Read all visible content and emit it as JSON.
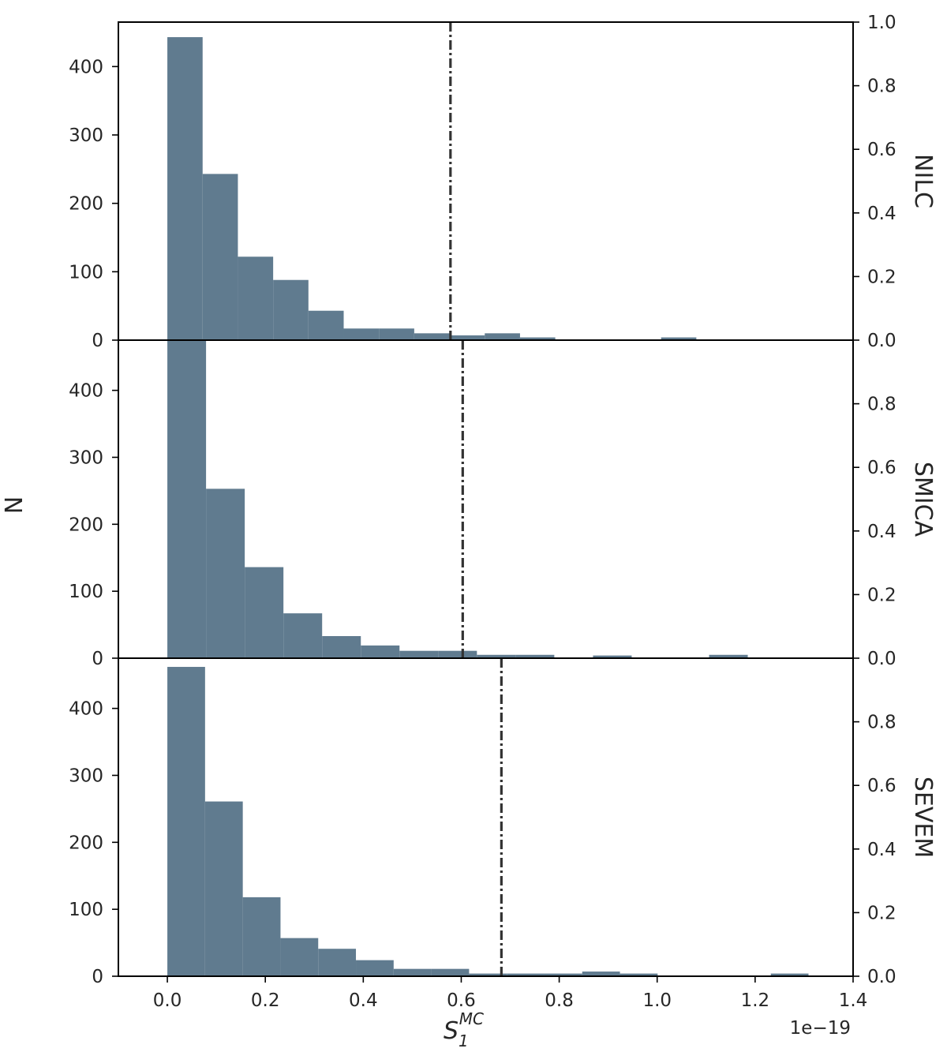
{
  "figure": {
    "ylabel": "N",
    "xlabel_main": "S",
    "xlabel_sub": "1",
    "xlabel_sup": "MC",
    "x_offset_text": "1e−19"
  },
  "colors": {
    "bar": "#607b8f",
    "line": "#333333",
    "axis": "#000000"
  },
  "chart_data": [
    {
      "type": "bar",
      "title": "",
      "label": "NILC",
      "xlim": [
        -0.1,
        1.4
      ],
      "ylim": [
        0,
        465
      ],
      "yticks": [
        0,
        100,
        200,
        300,
        400
      ],
      "y2ticks": [
        "0.0",
        "0.2",
        "0.4",
        "0.6",
        "0.8",
        "1.0"
      ],
      "bins": [
        [
          0.0,
          0.072,
          443
        ],
        [
          0.072,
          0.144,
          243
        ],
        [
          0.144,
          0.216,
          122
        ],
        [
          0.216,
          0.288,
          88
        ],
        [
          0.288,
          0.36,
          43
        ],
        [
          0.36,
          0.432,
          17
        ],
        [
          0.432,
          0.504,
          17
        ],
        [
          0.504,
          0.576,
          10
        ],
        [
          0.576,
          0.648,
          7
        ],
        [
          0.648,
          0.72,
          10
        ],
        [
          0.72,
          0.792,
          4
        ],
        [
          0.792,
          0.864,
          0
        ],
        [
          0.864,
          0.936,
          0
        ],
        [
          0.936,
          1.008,
          0
        ],
        [
          1.008,
          1.08,
          4
        ]
      ],
      "observed": 0.578
    },
    {
      "type": "bar",
      "title": "",
      "label": "SMICA",
      "xlim": [
        -0.1,
        1.4
      ],
      "ylim": [
        0,
        475
      ],
      "yticks": [
        0,
        100,
        200,
        300,
        400
      ],
      "y2ticks": [
        "0.0",
        "0.2",
        "0.4",
        "0.6",
        "0.8"
      ],
      "bins": [
        [
          0.0,
          0.079,
          477
        ],
        [
          0.079,
          0.158,
          253
        ],
        [
          0.158,
          0.237,
          136
        ],
        [
          0.237,
          0.316,
          67
        ],
        [
          0.316,
          0.395,
          33
        ],
        [
          0.395,
          0.474,
          19
        ],
        [
          0.474,
          0.553,
          11
        ],
        [
          0.553,
          0.632,
          11
        ],
        [
          0.632,
          0.711,
          5
        ],
        [
          0.711,
          0.79,
          5
        ],
        [
          0.79,
          0.869,
          0
        ],
        [
          0.869,
          0.948,
          4
        ],
        [
          0.948,
          1.027,
          0
        ],
        [
          1.027,
          1.106,
          0
        ],
        [
          1.106,
          1.185,
          5
        ]
      ],
      "observed": 0.603
    },
    {
      "type": "bar",
      "title": "",
      "label": "SEVEM",
      "xlim": [
        -0.1,
        1.4
      ],
      "ylim": [
        0,
        475
      ],
      "yticks": [
        0,
        100,
        200,
        300,
        400
      ],
      "y2ticks": [
        "0.0",
        "0.2",
        "0.4",
        "0.6",
        "0.8"
      ],
      "bins": [
        [
          0.0,
          0.077,
          462
        ],
        [
          0.077,
          0.154,
          261
        ],
        [
          0.154,
          0.231,
          118
        ],
        [
          0.231,
          0.308,
          57
        ],
        [
          0.308,
          0.385,
          41
        ],
        [
          0.385,
          0.462,
          24
        ],
        [
          0.462,
          0.539,
          11
        ],
        [
          0.539,
          0.616,
          11
        ],
        [
          0.616,
          0.693,
          4
        ],
        [
          0.693,
          0.77,
          4
        ],
        [
          0.77,
          0.847,
          4
        ],
        [
          0.847,
          0.924,
          7
        ],
        [
          0.924,
          1.001,
          4
        ],
        [
          1.001,
          1.078,
          0
        ],
        [
          1.078,
          1.155,
          0
        ],
        [
          1.155,
          1.232,
          0
        ],
        [
          1.232,
          1.309,
          4
        ]
      ],
      "observed": 0.682
    }
  ],
  "xaxis": {
    "ticks": [
      0.0,
      0.2,
      0.4,
      0.6,
      0.8,
      1.0,
      1.2,
      1.4
    ],
    "tick_labels": [
      "0.0",
      "0.2",
      "0.4",
      "0.6",
      "0.8",
      "1.0",
      "1.2",
      "1.4"
    ]
  }
}
